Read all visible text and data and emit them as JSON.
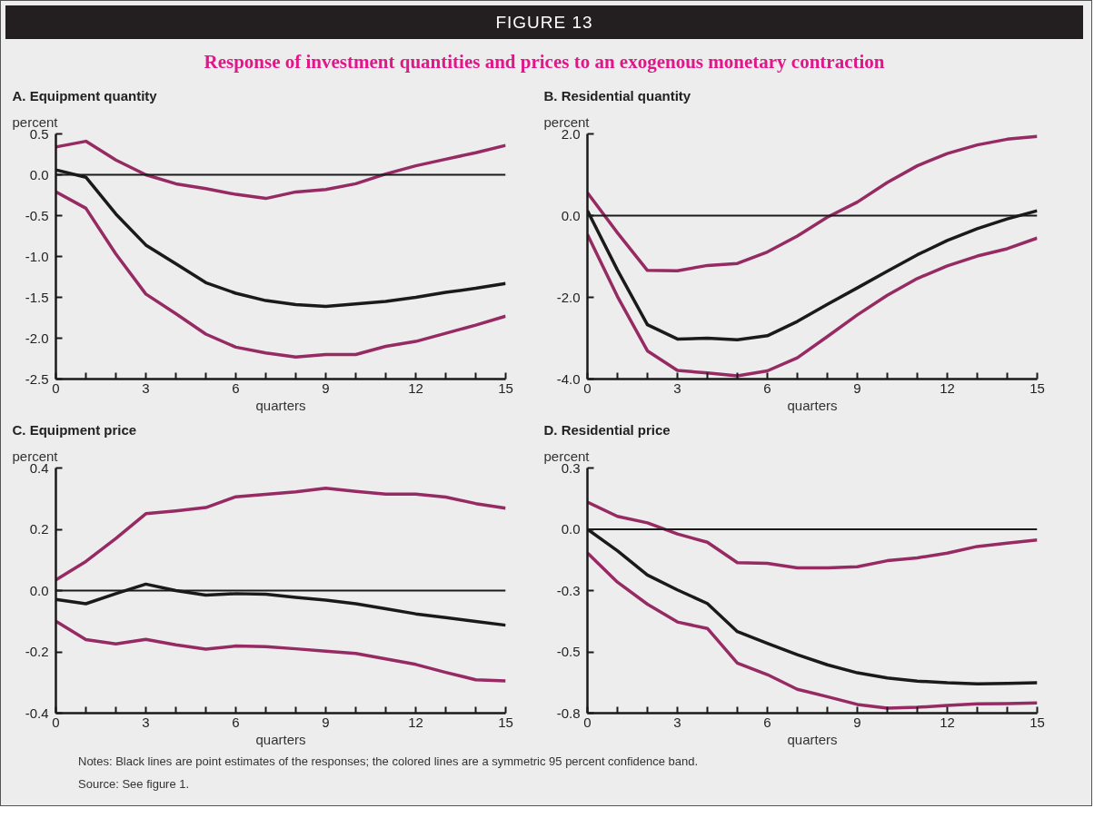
{
  "chart_data": [
    {
      "type": "other",
      "title": "FIGURE 13",
      "subtitle": "Response of investment quantities and prices to an exogenous monetary contraction",
      "annotations": [
        "Notes: Black lines are point estimates of the responses; the colored lines are a symmetric 95 percent confidence band.",
        "Source: See figure 1."
      ]
    },
    {
      "type": "line",
      "title": "A. Equipment quantity",
      "ylabel": "percent",
      "xlabel": "quarters",
      "x": [
        0,
        1,
        2,
        3,
        4,
        5,
        6,
        7,
        8,
        9,
        10,
        11,
        12,
        13,
        14,
        15
      ],
      "xlim": [
        0,
        15
      ],
      "xticks": [
        0,
        {
          "value": 1,
          "label": null
        },
        {
          "value": 2,
          "label": null
        },
        3,
        {
          "value": 4,
          "label": null
        },
        {
          "value": 5,
          "label": null
        },
        6,
        {
          "value": 7,
          "label": null
        },
        {
          "value": 8,
          "label": null
        },
        9,
        {
          "value": 10,
          "label": null
        },
        {
          "value": 11,
          "label": null
        },
        12,
        {
          "value": 13,
          "label": null
        },
        {
          "value": 14,
          "label": null
        },
        15
      ],
      "ylim": [
        -2.5,
        0.5
      ],
      "yticks": [
        {
          "value": 0.5,
          "label": "0.5"
        },
        {
          "value": 0,
          "label": "0.0"
        },
        {
          "value": -0.5,
          "label": "-0.5"
        },
        {
          "value": -1,
          "label": "-1.0"
        },
        {
          "value": -1.5,
          "label": "-1.5"
        },
        {
          "value": -2,
          "label": "-2.0"
        },
        {
          "value": -2.5,
          "label": "-2.5"
        }
      ],
      "ref_lines": [
        {
          "axis": "y",
          "value": 0,
          "color": "#1a1a1a"
        }
      ],
      "series": [
        {
          "color": "#962a62",
          "values": [
            0.34,
            0.41,
            0.18,
            0.0,
            -0.11,
            -0.17,
            -0.24,
            -0.29,
            -0.21,
            -0.18,
            -0.11,
            0.01,
            0.11,
            0.19,
            0.27,
            0.36
          ]
        },
        {
          "color": "#1a1a1a",
          "values": [
            0.06,
            -0.03,
            -0.48,
            -0.86,
            -1.09,
            -1.32,
            -1.45,
            -1.54,
            -1.59,
            -1.61,
            -1.58,
            -1.55,
            -1.5,
            -1.44,
            -1.39,
            -1.33
          ]
        },
        {
          "color": "#962a62",
          "values": [
            -0.21,
            -0.41,
            -0.97,
            -1.46,
            -1.7,
            -1.95,
            -2.11,
            -2.18,
            -2.23,
            -2.2,
            -2.2,
            -2.1,
            -2.04,
            -1.94,
            -1.84,
            -1.73
          ]
        }
      ]
    },
    {
      "type": "line",
      "title": "B. Residential quantity",
      "ylabel": "percent",
      "xlabel": "quarters",
      "x": [
        0,
        1,
        2,
        3,
        4,
        5,
        6,
        7,
        8,
        9,
        10,
        11,
        12,
        13,
        14,
        15
      ],
      "xlim": [
        0,
        15
      ],
      "xticks": [
        0,
        {
          "value": 1,
          "label": null
        },
        {
          "value": 2,
          "label": null
        },
        3,
        {
          "value": 4,
          "label": null
        },
        {
          "value": 5,
          "label": null
        },
        6,
        {
          "value": 7,
          "label": null
        },
        {
          "value": 8,
          "label": null
        },
        9,
        {
          "value": 10,
          "label": null
        },
        {
          "value": 11,
          "label": null
        },
        12,
        {
          "value": 13,
          "label": null
        },
        {
          "value": 14,
          "label": null
        },
        15
      ],
      "ylim": [
        -4,
        2
      ],
      "yticks": [
        {
          "value": 2,
          "label": "2.0"
        },
        {
          "value": 0,
          "label": "0.0"
        },
        {
          "value": -2,
          "label": "-2.0"
        },
        {
          "value": -4,
          "label": "-4.0"
        }
      ],
      "ref_lines": [
        {
          "axis": "y",
          "value": 0,
          "color": "#1a1a1a"
        }
      ],
      "series": [
        {
          "color": "#962a62",
          "values": [
            0.56,
            -0.42,
            -1.34,
            -1.35,
            -1.22,
            -1.17,
            -0.89,
            -0.5,
            -0.04,
            0.33,
            0.81,
            1.22,
            1.52,
            1.73,
            1.87,
            1.94
          ]
        },
        {
          "color": "#1a1a1a",
          "values": [
            0.12,
            -1.33,
            -2.67,
            -3.02,
            -3.0,
            -3.04,
            -2.94,
            -2.59,
            -2.17,
            -1.77,
            -1.36,
            -0.96,
            -0.61,
            -0.32,
            -0.08,
            0.12
          ]
        },
        {
          "color": "#962a62",
          "values": [
            -0.46,
            -1.98,
            -3.31,
            -3.79,
            -3.85,
            -3.92,
            -3.8,
            -3.48,
            -2.96,
            -2.43,
            -1.95,
            -1.54,
            -1.23,
            -0.99,
            -0.81,
            -0.55
          ]
        }
      ]
    },
    {
      "type": "line",
      "title": "C. Equipment price",
      "ylabel": "percent",
      "xlabel": "quarters",
      "x": [
        0,
        1,
        2,
        3,
        4,
        5,
        6,
        7,
        8,
        9,
        10,
        11,
        12,
        13,
        14,
        15
      ],
      "xlim": [
        0,
        15
      ],
      "xticks": [
        0,
        {
          "value": 1,
          "label": null
        },
        {
          "value": 2,
          "label": null
        },
        3,
        {
          "value": 4,
          "label": null
        },
        {
          "value": 5,
          "label": null
        },
        6,
        {
          "value": 7,
          "label": null
        },
        {
          "value": 8,
          "label": null
        },
        9,
        {
          "value": 10,
          "label": null
        },
        {
          "value": 11,
          "label": null
        },
        12,
        {
          "value": 13,
          "label": null
        },
        {
          "value": 14,
          "label": null
        },
        15
      ],
      "ylim": [
        -0.4,
        0.4
      ],
      "yticks": [
        0.4,
        0.2,
        {
          "value": 0,
          "label": "0.0"
        },
        -0.2,
        -0.4
      ],
      "ref_lines": [
        {
          "axis": "y",
          "value": 0,
          "color": "#1a1a1a"
        }
      ],
      "series": [
        {
          "color": "#962a62",
          "values": [
            0.035,
            0.095,
            0.17,
            0.251,
            0.26,
            0.271,
            0.306,
            0.314,
            0.322,
            0.334,
            0.324,
            0.315,
            0.315,
            0.305,
            0.284,
            0.269
          ]
        },
        {
          "color": "#1a1a1a",
          "values": [
            -0.029,
            -0.043,
            -0.01,
            0.021,
            0.0,
            -0.015,
            -0.01,
            -0.012,
            -0.022,
            -0.031,
            -0.043,
            -0.059,
            -0.076,
            -0.088,
            -0.101,
            -0.113
          ]
        },
        {
          "color": "#962a62",
          "values": [
            -0.1,
            -0.16,
            -0.174,
            -0.159,
            -0.177,
            -0.191,
            -0.181,
            -0.183,
            -0.19,
            -0.198,
            -0.205,
            -0.223,
            -0.241,
            -0.267,
            -0.291,
            -0.295
          ]
        }
      ]
    },
    {
      "type": "line",
      "title": "D. Residential price",
      "ylabel": "percent",
      "xlabel": "quarters",
      "x": [
        0,
        1,
        2,
        3,
        4,
        5,
        6,
        7,
        8,
        9,
        10,
        11,
        12,
        13,
        14,
        15
      ],
      "xlim": [
        0,
        15
      ],
      "xticks": [
        0,
        {
          "value": 1,
          "label": null
        },
        {
          "value": 2,
          "label": null
        },
        3,
        {
          "value": 4,
          "label": null
        },
        {
          "value": 5,
          "label": null
        },
        6,
        {
          "value": 7,
          "label": null
        },
        {
          "value": 8,
          "label": null
        },
        9,
        {
          "value": 10,
          "label": null
        },
        {
          "value": 11,
          "label": null
        },
        12,
        {
          "value": 13,
          "label": null
        },
        {
          "value": 14,
          "label": null
        },
        15
      ],
      "ylim": [
        -0.825,
        0.275
      ],
      "yticks": [
        {
          "value": 0.275,
          "label": "0.3"
        },
        {
          "value": 0,
          "label": "0.0"
        },
        {
          "value": -0.275,
          "label": "-0.3"
        },
        {
          "value": -0.55,
          "label": "-0.5"
        },
        {
          "value": -0.825,
          "label": "-0.8"
        }
      ],
      "ref_lines": [
        {
          "axis": "y",
          "value": 0,
          "color": "#1a1a1a"
        }
      ],
      "series": [
        {
          "color": "#962a62",
          "values": [
            0.122,
            0.058,
            0.029,
            -0.021,
            -0.058,
            -0.15,
            -0.153,
            -0.173,
            -0.173,
            -0.168,
            -0.141,
            -0.128,
            -0.107,
            -0.077,
            -0.062,
            -0.048
          ]
        },
        {
          "color": "#1a1a1a",
          "values": [
            0.0,
            -0.096,
            -0.205,
            -0.272,
            -0.333,
            -0.459,
            -0.512,
            -0.563,
            -0.608,
            -0.644,
            -0.667,
            -0.681,
            -0.689,
            -0.694,
            -0.692,
            -0.689
          ]
        },
        {
          "color": "#962a62",
          "values": [
            -0.106,
            -0.237,
            -0.336,
            -0.416,
            -0.445,
            -0.6,
            -0.652,
            -0.718,
            -0.751,
            -0.786,
            -0.803,
            -0.799,
            -0.79,
            -0.783,
            -0.782,
            -0.779
          ]
        }
      ]
    }
  ]
}
